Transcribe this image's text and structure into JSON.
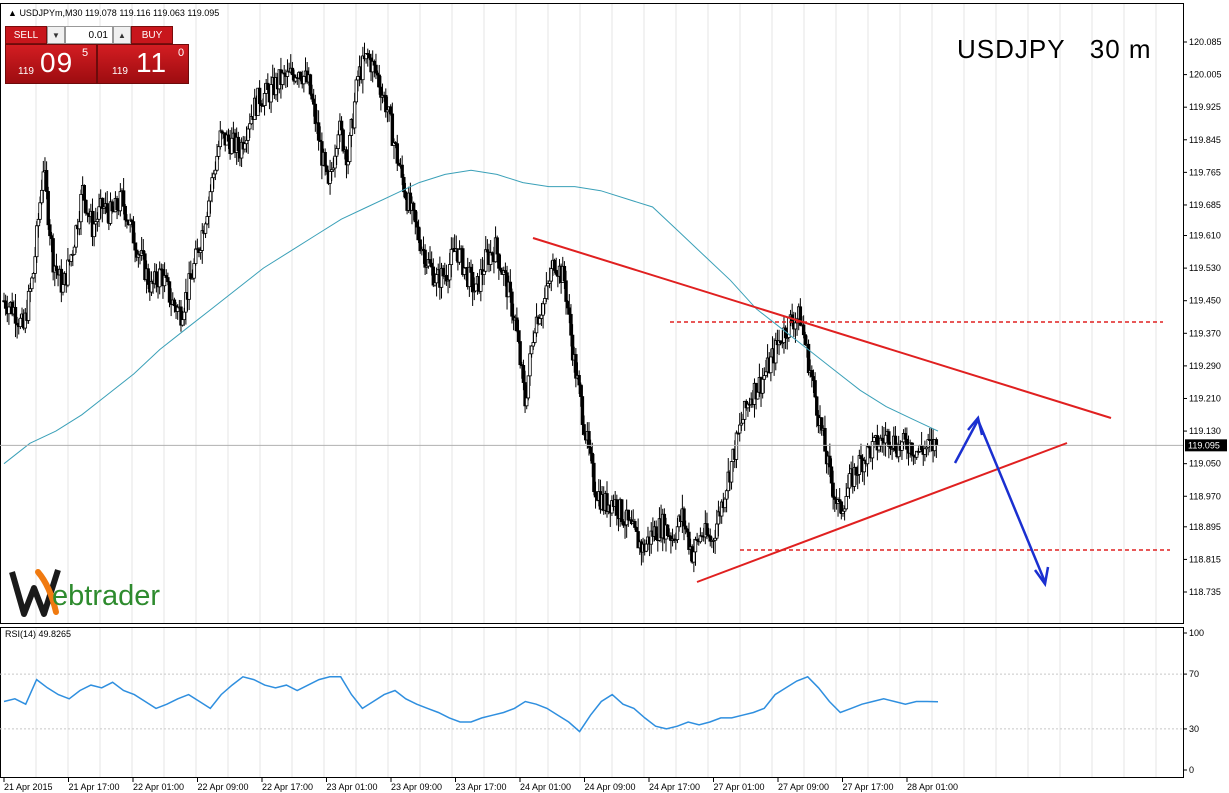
{
  "header": {
    "symbol_info": "USDJPYm,M30  119.078 119.116 119.063 119.095"
  },
  "title": "USDJPY   30 m",
  "trade_panel": {
    "sell_label": "SELL",
    "buy_label": "BUY",
    "lot": "0.01",
    "sell_price": {
      "small": "119",
      "big": "09",
      "sup": "5"
    },
    "buy_price": {
      "small": "119",
      "big": "11",
      "sup": "0"
    }
  },
  "logo": {
    "text": "ebtrader"
  },
  "colors": {
    "trendline": "#e02020",
    "ma": "#3aa0b8",
    "arrow": "#1a2fd0",
    "rsi": "#2f8fdf",
    "sell": "#c8161c"
  },
  "chart_data": {
    "type": "candlestick",
    "price_ticks": [
      "120.085",
      "120.005",
      "119.925",
      "119.845",
      "119.765",
      "119.685",
      "119.610",
      "119.530",
      "119.450",
      "119.370",
      "119.290",
      "119.210",
      "119.130",
      "119.050",
      "118.970",
      "118.895",
      "118.815",
      "118.735"
    ],
    "ylim": [
      118.735,
      120.085
    ],
    "current_price": "119.095",
    "time_ticks": [
      "21 Apr 2015",
      "21 Apr 17:00",
      "22 Apr 01:00",
      "22 Apr 09:00",
      "22 Apr 17:00",
      "23 Apr 01:00",
      "23 Apr 09:00",
      "23 Apr 17:00",
      "24 Apr 01:00",
      "24 Apr 09:00",
      "24 Apr 17:00",
      "27 Apr 01:00",
      "27 Apr 09:00",
      "27 Apr 17:00",
      "28 Apr 01:00"
    ],
    "close_path": [
      119.45,
      119.43,
      119.38,
      119.52,
      119.78,
      119.55,
      119.48,
      119.58,
      119.72,
      119.63,
      119.68,
      119.66,
      119.7,
      119.62,
      119.55,
      119.48,
      119.52,
      119.45,
      119.42,
      119.5,
      119.6,
      119.72,
      119.85,
      119.84,
      119.82,
      119.9,
      119.95,
      119.96,
      119.99,
      120.0,
      120.02,
      119.98,
      119.85,
      119.72,
      119.88,
      119.8,
      120.0,
      120.05,
      120.0,
      119.92,
      119.8,
      119.7,
      119.62,
      119.55,
      119.5,
      119.52,
      119.58,
      119.52,
      119.47,
      119.55,
      119.58,
      119.5,
      119.4,
      119.2,
      119.4,
      119.45,
      119.55,
      119.5,
      119.3,
      119.15,
      119.0,
      118.95,
      118.96,
      118.92,
      118.88,
      118.84,
      118.88,
      118.9,
      118.87,
      118.92,
      118.83,
      118.88,
      118.86,
      118.95,
      119.05,
      119.15,
      119.22,
      119.25,
      119.3,
      119.36,
      119.4,
      119.41,
      119.28,
      119.15,
      119.02,
      118.93,
      119.0,
      119.05,
      119.08,
      119.1,
      119.12,
      119.09,
      119.1,
      119.08,
      119.09,
      119.095
    ],
    "ma_path": [
      119.05,
      119.1,
      119.13,
      119.17,
      119.22,
      119.27,
      119.33,
      119.38,
      119.43,
      119.48,
      119.53,
      119.57,
      119.61,
      119.65,
      119.68,
      119.71,
      119.74,
      119.76,
      119.77,
      119.76,
      119.74,
      119.73,
      119.73,
      119.72,
      119.7,
      119.68,
      119.62,
      119.56,
      119.5,
      119.43,
      119.38,
      119.33,
      119.28,
      119.23,
      119.19,
      119.16,
      119.13
    ],
    "rsi": {
      "label": "RSI(14) 49.8265",
      "ticks": [
        "100",
        "70",
        "30",
        "0"
      ],
      "ylim": [
        0,
        100
      ],
      "values": [
        50,
        52,
        48,
        66,
        60,
        55,
        52,
        58,
        62,
        60,
        64,
        58,
        55,
        50,
        45,
        48,
        52,
        55,
        50,
        45,
        55,
        62,
        68,
        66,
        62,
        60,
        62,
        58,
        62,
        66,
        68,
        68,
        55,
        45,
        50,
        55,
        58,
        52,
        48,
        45,
        42,
        38,
        35,
        35,
        38,
        40,
        42,
        45,
        50,
        48,
        45,
        40,
        35,
        28,
        40,
        50,
        55,
        48,
        45,
        38,
        32,
        30,
        32,
        35,
        33,
        35,
        38,
        38,
        40,
        42,
        45,
        55,
        60,
        65,
        68,
        60,
        50,
        42,
        45,
        48,
        50,
        52,
        50,
        48,
        50,
        50,
        49.83
      ]
    }
  }
}
